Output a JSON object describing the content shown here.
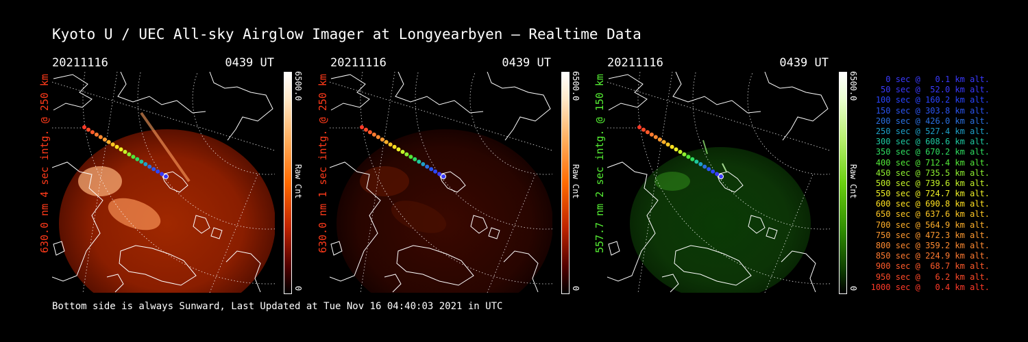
{
  "title": "Kyoto U / UEC All-sky Airglow Imager at Longyearbyen — Realtime Data",
  "panels": [
    {
      "date": "20211116",
      "time": "0439 UT",
      "label": "630.0 nm 4 sec intg. @ 250 km",
      "label_color": "#ff3a1a",
      "cbar_max": "6500.0",
      "cbar_min": "0",
      "cbar_unit": "Raw Cnt",
      "colormap": "red"
    },
    {
      "date": "20211116",
      "time": "0439 UT",
      "label": "630.0 nm 1 sec intg. @ 250 km",
      "label_color": "#ff3a1a",
      "cbar_max": "6500.0",
      "cbar_min": "0",
      "cbar_unit": "Raw Cnt",
      "colormap": "red"
    },
    {
      "date": "20211116",
      "time": "0439 UT",
      "label": "557.7 nm 2 sec intg. @ 150 km",
      "label_color": "#55ee33",
      "cbar_max": "6500.0",
      "cbar_min": "0",
      "cbar_unit": "Raw Cnt",
      "colormap": "green"
    }
  ],
  "legend": [
    {
      "text": "0 sec @   0.1 km alt.",
      "color": "#3a3aff"
    },
    {
      "text": "50 sec @  52.0 km alt.",
      "color": "#3a3aff"
    },
    {
      "text": "100 sec @ 160.2 km alt.",
      "color": "#2a45ff"
    },
    {
      "text": "150 sec @ 303.8 km alt.",
      "color": "#2a55f0"
    },
    {
      "text": "200 sec @ 426.0 km alt.",
      "color": "#2a70e0"
    },
    {
      "text": "250 sec @ 527.4 km alt.",
      "color": "#1ea0c8"
    },
    {
      "text": "300 sec @ 608.6 km alt.",
      "color": "#1ec8a0"
    },
    {
      "text": "350 sec @ 670.2 km alt.",
      "color": "#2edc60"
    },
    {
      "text": "400 sec @ 712.4 km alt.",
      "color": "#52e838"
    },
    {
      "text": "450 sec @ 735.5 km alt.",
      "color": "#8ef030"
    },
    {
      "text": "500 sec @ 739.6 km alt.",
      "color": "#c4f428"
    },
    {
      "text": "550 sec @ 724.7 km alt.",
      "color": "#eef026"
    },
    {
      "text": "600 sec @ 690.8 km alt.",
      "color": "#ffe020"
    },
    {
      "text": "650 sec @ 637.6 km alt.",
      "color": "#ffc824"
    },
    {
      "text": "700 sec @ 564.9 km alt.",
      "color": "#ffb02a"
    },
    {
      "text": "750 sec @ 472.3 km alt.",
      "color": "#ff9a30"
    },
    {
      "text": "800 sec @ 359.2 km alt.",
      "color": "#ff8a30"
    },
    {
      "text": "850 sec @ 224.9 km alt.",
      "color": "#ff7a30"
    },
    {
      "text": "900 sec @  68.7 km alt.",
      "color": "#ff5a2a"
    },
    {
      "text": "950 sec @   6.2 km alt.",
      "color": "#ff4a28"
    },
    {
      "text": "1000 sec @   0.4 km alt.",
      "color": "#ff3a28"
    }
  ],
  "footer": "Bottom side is always Sunward, Last Updated at Tue Nov 16 04:40:03 2021 in UTC"
}
